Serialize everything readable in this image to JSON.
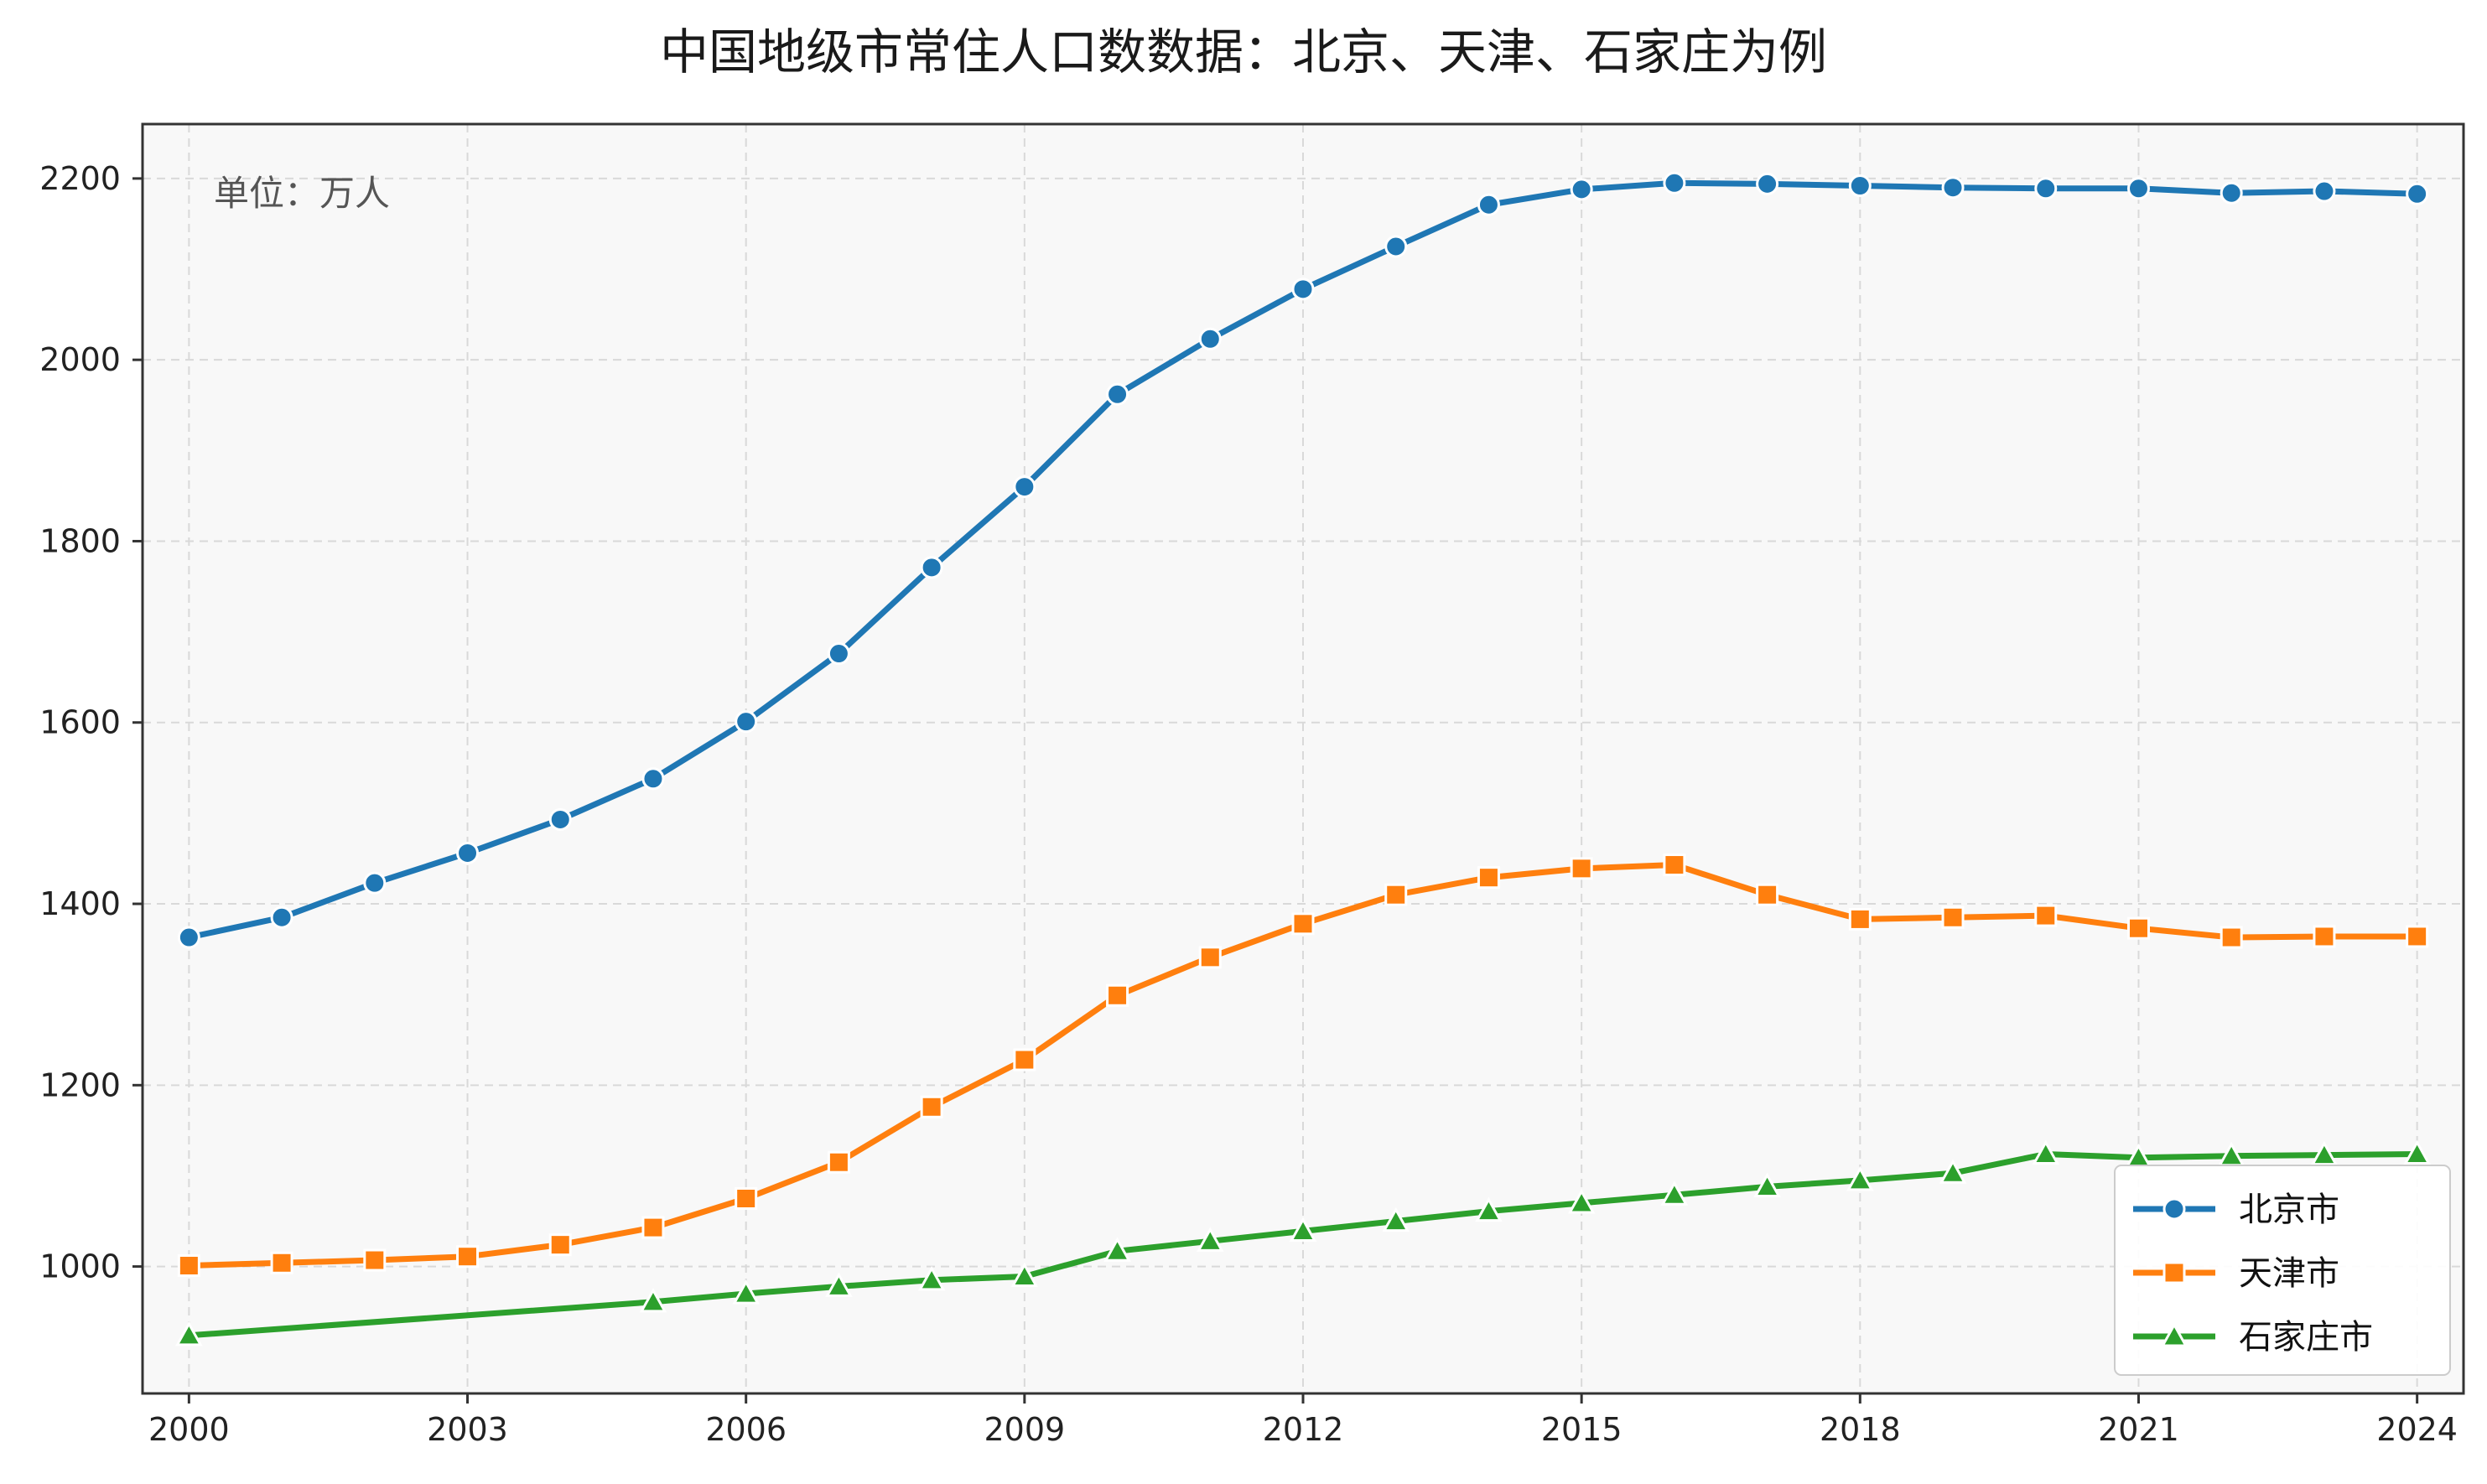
{
  "chart_data": {
    "type": "line",
    "title": "中国地级市常住人口数数据：北京、天津、石家庄为例",
    "annotation": "单位：万人",
    "xlabel": "",
    "ylabel": "",
    "xlim": [
      1999.5,
      2024.5
    ],
    "ylim": [
      860,
      2260
    ],
    "xticks": [
      2000,
      2003,
      2006,
      2009,
      2012,
      2015,
      2018,
      2021,
      2024
    ],
    "yticks": [
      1000,
      1200,
      1400,
      1600,
      1800,
      2000,
      2200
    ],
    "grid": true,
    "legend_position": "bottom-right",
    "series": [
      {
        "name": "北京市",
        "color": "#1f77b4",
        "marker": "circle",
        "points": [
          [
            2000,
            1363
          ],
          [
            2001,
            1385
          ],
          [
            2002,
            1423
          ],
          [
            2003,
            1456
          ],
          [
            2004,
            1493
          ],
          [
            2005,
            1538
          ],
          [
            2006,
            1601
          ],
          [
            2007,
            1676
          ],
          [
            2008,
            1771
          ],
          [
            2009,
            1860
          ],
          [
            2010,
            1962
          ],
          [
            2011,
            2023
          ],
          [
            2012,
            2078
          ],
          [
            2013,
            2125
          ],
          [
            2014,
            2171
          ],
          [
            2015,
            2188
          ],
          [
            2016,
            2195
          ],
          [
            2017,
            2194
          ],
          [
            2018,
            2192
          ],
          [
            2019,
            2190
          ],
          [
            2020,
            2189
          ],
          [
            2021,
            2189
          ],
          [
            2022,
            2184
          ],
          [
            2023,
            2186
          ],
          [
            2024,
            2183
          ]
        ]
      },
      {
        "name": "天津市",
        "color": "#ff7f0e",
        "marker": "square",
        "points": [
          [
            2000,
            1001
          ],
          [
            2001,
            1004
          ],
          [
            2002,
            1007
          ],
          [
            2003,
            1011
          ],
          [
            2004,
            1024
          ],
          [
            2005,
            1043
          ],
          [
            2006,
            1075
          ],
          [
            2007,
            1115
          ],
          [
            2008,
            1176
          ],
          [
            2009,
            1228
          ],
          [
            2010,
            1299
          ],
          [
            2011,
            1341
          ],
          [
            2012,
            1378
          ],
          [
            2013,
            1410
          ],
          [
            2014,
            1429
          ],
          [
            2015,
            1439
          ],
          [
            2016,
            1443
          ],
          [
            2017,
            1410
          ],
          [
            2018,
            1383
          ],
          [
            2019,
            1385
          ],
          [
            2020,
            1387
          ],
          [
            2021,
            1373
          ],
          [
            2022,
            1363
          ],
          [
            2023,
            1364
          ],
          [
            2024,
            1364
          ]
        ]
      },
      {
        "name": "石家庄市",
        "color": "#2ca02c",
        "marker": "triangle",
        "points": [
          [
            2000,
            924
          ],
          [
            2005,
            961
          ],
          [
            2006,
            970
          ],
          [
            2007,
            978
          ],
          [
            2008,
            985
          ],
          [
            2009,
            989
          ],
          [
            2010,
            1017
          ],
          [
            2011,
            1028
          ],
          [
            2012,
            1039
          ],
          [
            2013,
            1050
          ],
          [
            2014,
            1061
          ],
          [
            2015,
            1070
          ],
          [
            2016,
            1079
          ],
          [
            2017,
            1088
          ],
          [
            2018,
            1095
          ],
          [
            2019,
            1103
          ],
          [
            2020,
            1124
          ],
          [
            2021,
            1120
          ],
          [
            2022,
            1122
          ],
          [
            2023,
            1123
          ],
          [
            2024,
            1124
          ]
        ]
      }
    ]
  },
  "style": {
    "plot_background": "#f8f8f8",
    "grid_color": "#d9d9d9",
    "axis_color": "#333333"
  }
}
